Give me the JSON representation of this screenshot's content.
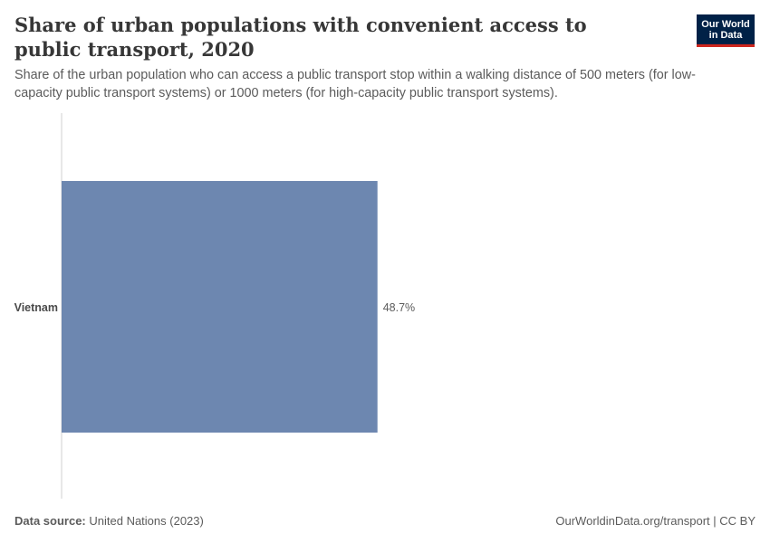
{
  "header": {
    "title": "Share of urban populations with convenient access to public transport, 2020",
    "subtitle": "Share of the urban population who can access a public transport stop within a walking distance of 500 meters (for low-capacity public transport systems) or 1000 meters (for high-capacity public transport systems)."
  },
  "logo": {
    "line1": "Our World",
    "line2": "in Data"
  },
  "chart_data": {
    "type": "bar",
    "orientation": "horizontal",
    "categories": [
      "Vietnam"
    ],
    "values": [
      48.7
    ],
    "value_labels": [
      "48.7%"
    ],
    "unit": "%",
    "xlim": [
      0,
      100
    ],
    "color": "#6d87b0",
    "grid": false
  },
  "footer": {
    "source_label": "Data source:",
    "source_value": "United Nations (2023)",
    "license": "OurWorldinData.org/transport | CC BY"
  }
}
